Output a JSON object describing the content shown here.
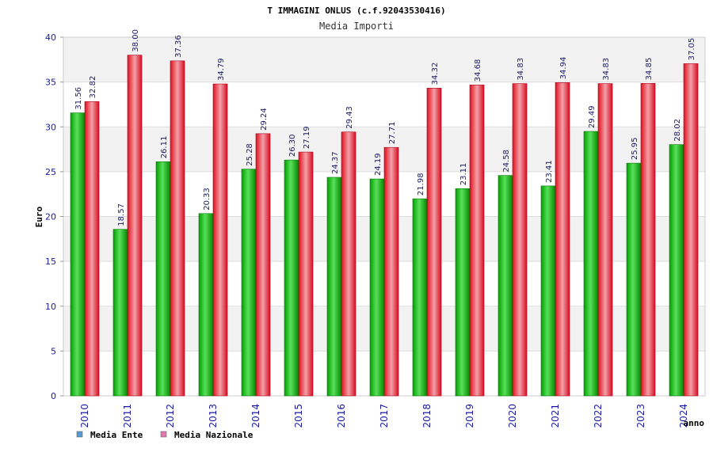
{
  "chart_data": {
    "type": "bar",
    "title": "T IMMAGINI ONLUS (c.f.92043530416)",
    "subtitle": "Media Importi",
    "ylabel": "Euro",
    "xlabel": "anno",
    "ylim": [
      0,
      40
    ],
    "yticks": [
      0,
      5,
      10,
      15,
      20,
      25,
      30,
      35,
      40
    ],
    "categories": [
      "2010",
      "2011",
      "2012",
      "2013",
      "2014",
      "2015",
      "2016",
      "2017",
      "2018",
      "2019",
      "2020",
      "2021",
      "2022",
      "2023",
      "2024"
    ],
    "series": [
      {
        "name": "Media Ente",
        "color": "#00b000",
        "values": [
          31.56,
          18.57,
          26.11,
          20.33,
          25.28,
          26.3,
          24.37,
          24.19,
          21.98,
          23.11,
          24.58,
          23.41,
          29.49,
          25.95,
          28.02
        ],
        "labels": [
          "31.56",
          "18.57",
          "26.11",
          "20.33",
          "25.28",
          "26.30",
          "24.37",
          "24.19",
          "21.98",
          "23.11",
          "24.58",
          "23.41",
          "29.49",
          "25.95",
          "28.02"
        ]
      },
      {
        "name": "Media Nazionale",
        "color": "#e8102a",
        "values": [
          32.82,
          38.0,
          37.36,
          34.79,
          29.24,
          27.19,
          29.43,
          27.71,
          34.32,
          34.68,
          34.83,
          34.94,
          34.83,
          34.85,
          37.05
        ],
        "labels": [
          "32.82",
          "38.00",
          "37.36",
          "34.79",
          "29.24",
          "27.19",
          "29.43",
          "27.71",
          "34.32",
          "34.68",
          "34.83",
          "34.94",
          "34.83",
          "34.85",
          "37.05"
        ]
      }
    ],
    "legend": [
      {
        "label": "Media Ente",
        "color": "#5b9bd5"
      },
      {
        "label": "Media Nazionale",
        "color": "#e07ab0"
      }
    ],
    "legend_position": "bottom-left",
    "grid": true
  }
}
